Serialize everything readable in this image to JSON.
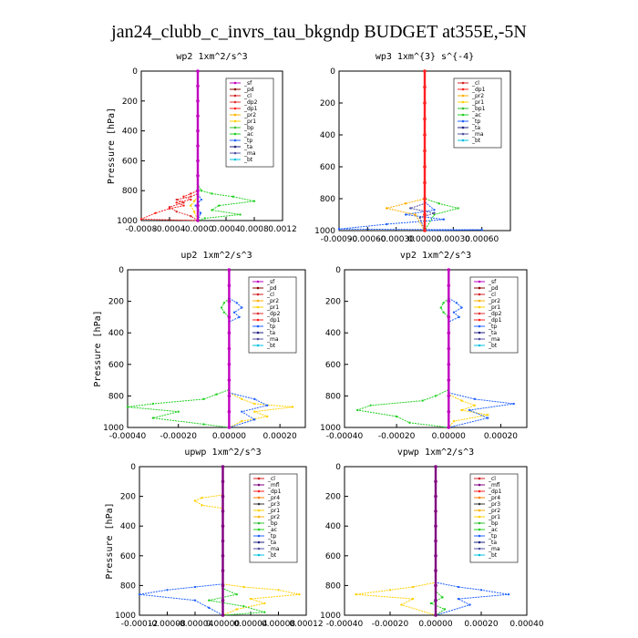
{
  "figure_title": "jan24_clubb_c_invrs_tau_bkgndp  BUDGET at355E,-5N",
  "colors": {
    "sf": "#c000c0",
    "pd": "#8b0000",
    "cl": "#d42020",
    "dp1": "#ff2020",
    "dp2": "#e03030",
    "pr1": "#ffd000",
    "pr2": "#ffb000",
    "pr4": "#ff8000",
    "bp": "#30c030",
    "ac": "#20d020",
    "tp": "#2060ff",
    "ta": "#202080",
    "ma": "#5050a0",
    "bt": "#00c0e0",
    "mfl": "#800080"
  },
  "chart_data": [
    {
      "type": "line",
      "title": "wp2  1xm^2/s^3",
      "ylabel": "Pressure [hPa]",
      "ylim": [
        1000,
        0
      ],
      "xlim": [
        -0.0008,
        0.0012
      ],
      "xticks": [
        "-0.0008",
        "-0.0004",
        "-0.0000",
        "0.0004",
        "0.0008",
        "0.0012"
      ],
      "yticks": [
        "0",
        "200",
        "400",
        "600",
        "800",
        "1000"
      ],
      "legend": [
        "_sf",
        "_pd",
        "_cl",
        "_dp2",
        "_dp1",
        "_pr2",
        "_pr1",
        "_bp",
        "_ac",
        "_tp",
        "_ta",
        "_ma",
        "_bt"
      ],
      "series": [
        {
          "name": "_ac",
          "color": "ac",
          "x": [
            0,
            0,
            5e-05,
            0.0002,
            0.0005,
            0.0008,
            0.0003,
            0.0002,
            0.0006,
            0.0001,
            0
          ],
          "y": [
            0,
            760,
            800,
            820,
            840,
            870,
            900,
            930,
            960,
            985,
            1000
          ]
        },
        {
          "name": "_dp1",
          "color": "dp1",
          "x": [
            0,
            0,
            -0.0001,
            -0.0002,
            -0.0001,
            -0.0003,
            -0.0002,
            -0.0004,
            -0.0006,
            -0.0008,
            0
          ],
          "y": [
            0,
            800,
            820,
            840,
            860,
            880,
            900,
            920,
            950,
            990,
            1000
          ]
        },
        {
          "name": "_dp2",
          "color": "dp2",
          "x": [
            0,
            0,
            -0.0001,
            -0.0003,
            -0.0002,
            -0.0004,
            -0.0003,
            -0.0001,
            0
          ],
          "y": [
            0,
            820,
            840,
            860,
            880,
            910,
            940,
            970,
            1000
          ]
        },
        {
          "name": "_pr1",
          "color": "pr1",
          "x": [
            0,
            0,
            -5e-05,
            -0.0001,
            -5e-05,
            0
          ],
          "y": [
            0,
            840,
            870,
            900,
            940,
            1000
          ]
        },
        {
          "name": "_tp",
          "color": "tp",
          "x": [
            0,
            0,
            5e-05,
            -3e-05,
            4e-05,
            0
          ],
          "y": [
            0,
            820,
            860,
            900,
            950,
            1000
          ]
        },
        {
          "name": "_sf",
          "color": "sf",
          "x": [
            0,
            0,
            0,
            0,
            0,
            0,
            0,
            0,
            0,
            0,
            0
          ],
          "y": [
            0,
            100,
            200,
            300,
            400,
            500,
            600,
            700,
            800,
            900,
            1000
          ]
        }
      ]
    },
    {
      "type": "line",
      "title": "wp3  1xm^{3} s^{-4}",
      "ylabel": "",
      "ylim": [
        1000,
        0
      ],
      "xlim": [
        -0.0009,
        0.0009
      ],
      "xticks": [
        "-0.00090",
        "-0.00060",
        "-0.00030",
        "0.00000",
        "0.00030",
        "0.00060"
      ],
      "yticks": [
        "0",
        "200",
        "400",
        "600",
        "800",
        "1000"
      ],
      "legend": [
        "_cl",
        "_dp1",
        "_pr2",
        "_pr1",
        "_bp1",
        "_ac",
        "_tp",
        "_ta",
        "_ma",
        "_bt"
      ],
      "series": [
        {
          "name": "_tp",
          "color": "tp",
          "x": [
            0,
            0,
            0.0001,
            -0.0002,
            0.0002,
            -0.0004,
            -0.0009,
            0.0006,
            0
          ],
          "y": [
            0,
            820,
            870,
            900,
            930,
            960,
            990,
            995,
            1000
          ]
        },
        {
          "name": "_ac",
          "color": "ac",
          "x": [
            0,
            0,
            0.00015,
            0.00035,
            0.0001,
            0
          ],
          "y": [
            0,
            800,
            830,
            860,
            900,
            1000
          ]
        },
        {
          "name": "_pr2",
          "color": "pr2",
          "x": [
            0,
            0,
            -0.0002,
            -0.0004,
            -0.0001,
            0
          ],
          "y": [
            0,
            800,
            830,
            860,
            900,
            1000
          ]
        },
        {
          "name": "_ma",
          "color": "ma",
          "x": [
            0,
            0,
            -0.00015,
            0.0001,
            -5e-05,
            0
          ],
          "y": [
            0,
            830,
            860,
            890,
            920,
            1000
          ]
        },
        {
          "name": "_dp1",
          "color": "dp1",
          "x": [
            0,
            0,
            0,
            0,
            0,
            0,
            0,
            0,
            0,
            0,
            0
          ],
          "y": [
            0,
            100,
            200,
            300,
            400,
            500,
            600,
            700,
            800,
            900,
            1000
          ]
        }
      ]
    },
    {
      "type": "line",
      "title": "up2  1xm^2/s^3",
      "ylabel": "Pressure [hPa]",
      "ylim": [
        1000,
        0
      ],
      "xlim": [
        -0.0004,
        0.0003
      ],
      "xticks": [
        "-0.00040",
        "-0.00020",
        "0.00000",
        "0.00020"
      ],
      "yticks": [
        "0",
        "200",
        "400",
        "600",
        "800",
        "1000"
      ],
      "legend": [
        "_sf",
        "_pd",
        "_cl",
        "_pr2",
        "_pr1",
        "_dp2",
        "_dp1",
        "_tp",
        "_ta",
        "_ma",
        "_bt"
      ],
      "series": [
        {
          "name": "_dp1",
          "color": "ac",
          "x": [
            0,
            0,
            -5e-05,
            -0.0001,
            -0.0003,
            -0.0004,
            -0.0002,
            -0.0003,
            -0.0001,
            0
          ],
          "y": [
            0,
            760,
            790,
            820,
            850,
            870,
            900,
            940,
            980,
            1000
          ]
        },
        {
          "name": "_pr1",
          "color": "pr1",
          "x": [
            0,
            0,
            5e-05,
            0.0001,
            0.00025,
            0.0001,
            0.00015,
            5e-05,
            0
          ],
          "y": [
            0,
            780,
            820,
            850,
            870,
            900,
            930,
            960,
            1000
          ]
        },
        {
          "name": "_tp",
          "color": "tp",
          "x": [
            0,
            0,
            0.0001,
            0.00015,
            5e-05,
            0.0001,
            0
          ],
          "y": [
            0,
            780,
            820,
            860,
            900,
            950,
            1000
          ]
        },
        {
          "name": "_tp_up",
          "color": "tp",
          "x": [
            0,
            3e-05,
            5e-05,
            2e-05,
            4e-05,
            0
          ],
          "y": [
            180,
            210,
            240,
            270,
            300,
            330
          ]
        },
        {
          "name": "_pr2_up",
          "color": "ac",
          "x": [
            0,
            -2e-05,
            -3e-05,
            -2e-05,
            0
          ],
          "y": [
            180,
            210,
            240,
            270,
            300
          ]
        },
        {
          "name": "_sf",
          "color": "sf",
          "x": [
            0,
            0,
            0,
            0,
            0,
            0,
            0,
            0,
            0,
            0,
            0
          ],
          "y": [
            0,
            100,
            200,
            300,
            400,
            500,
            600,
            700,
            800,
            900,
            1000
          ]
        }
      ]
    },
    {
      "type": "line",
      "title": "vp2  1xm^2/s^3",
      "ylabel": "",
      "ylim": [
        1000,
        0
      ],
      "xlim": [
        -0.0004,
        0.0003
      ],
      "xticks": [
        "-0.00040",
        "-0.00020",
        "0.00000",
        "0.00020"
      ],
      "yticks": [
        "0",
        "200",
        "400",
        "600",
        "800",
        "1000"
      ],
      "legend": [
        "_sf",
        "_pd",
        "_cl",
        "_pr2",
        "_pr1",
        "_dp2",
        "_dp1",
        "_tp",
        "_ta",
        "_ma",
        "_bt"
      ],
      "series": [
        {
          "name": "_dp1",
          "color": "ac",
          "x": [
            0,
            0,
            -5e-05,
            -0.0001,
            -0.0003,
            -0.00035,
            -0.0002,
            -0.00015,
            0
          ],
          "y": [
            0,
            760,
            800,
            830,
            860,
            890,
            930,
            970,
            1000
          ]
        },
        {
          "name": "_pr1",
          "color": "pr1",
          "x": [
            0,
            0,
            5e-05,
            0.0001,
            5e-05,
            0.00015,
            2e-05,
            0
          ],
          "y": [
            0,
            790,
            830,
            860,
            890,
            920,
            960,
            1000
          ]
        },
        {
          "name": "_tp",
          "color": "tp",
          "x": [
            0,
            0,
            0.0001,
            0.00025,
            8e-05,
            0.00015,
            0
          ],
          "y": [
            0,
            780,
            820,
            850,
            890,
            940,
            1000
          ]
        },
        {
          "name": "_tp_up",
          "color": "tp",
          "x": [
            0,
            3e-05,
            5e-05,
            2e-05,
            4e-05,
            0
          ],
          "y": [
            180,
            210,
            240,
            270,
            300,
            330
          ]
        },
        {
          "name": "_pr2_up",
          "color": "ac",
          "x": [
            0,
            -2e-05,
            -3e-05,
            -2e-05,
            0
          ],
          "y": [
            180,
            210,
            240,
            270,
            300
          ]
        },
        {
          "name": "_sf",
          "color": "sf",
          "x": [
            0,
            0,
            0,
            0,
            0,
            0,
            0,
            0,
            0,
            0,
            0
          ],
          "y": [
            0,
            100,
            200,
            300,
            400,
            500,
            600,
            700,
            800,
            900,
            1000
          ]
        }
      ]
    },
    {
      "type": "line",
      "title": "upwp  1xm^2/s^3",
      "ylabel": "Pressure [hPa]",
      "ylim": [
        1000,
        0
      ],
      "xlim": [
        -0.00012,
        0.00012
      ],
      "xticks": [
        "-0.00012",
        "-0.00008",
        "-0.00004",
        "0.00000",
        "0.00004",
        "0.00008",
        "0.00012"
      ],
      "yticks": [
        "0",
        "200",
        "400",
        "600",
        "800",
        "1000"
      ],
      "legend": [
        "_cl",
        "_mfl",
        "_dp1",
        "_pr4",
        "_pr3",
        "_pr1",
        "_pr2",
        "_bp",
        "_ac",
        "_tp",
        "_ta",
        "_ma",
        "_bt"
      ],
      "series": [
        {
          "name": "_tp",
          "color": "tp",
          "x": [
            0,
            0,
            -4e-05,
            -8e-05,
            -0.00012,
            -4e-05,
            -2e-05,
            0
          ],
          "y": [
            0,
            790,
            810,
            830,
            860,
            900,
            950,
            1000
          ]
        },
        {
          "name": "_pr1",
          "color": "pr1",
          "x": [
            0,
            0,
            3e-05,
            8e-05,
            0.00011,
            4e-05,
            6e-05,
            2e-05,
            0
          ],
          "y": [
            0,
            790,
            810,
            830,
            860,
            890,
            920,
            960,
            1000
          ]
        },
        {
          "name": "_ac",
          "color": "ac",
          "x": [
            0,
            0,
            2e-05,
            -2e-05,
            3e-05,
            6e-05,
            0
          ],
          "y": [
            0,
            820,
            860,
            900,
            940,
            980,
            1000
          ]
        },
        {
          "name": "_pr1_up",
          "color": "pr1",
          "x": [
            0,
            -3e-05,
            -4e-05,
            -3e-05,
            0
          ],
          "y": [
            190,
            210,
            230,
            260,
            280
          ]
        },
        {
          "name": "_cl",
          "color": "mfl",
          "x": [
            0,
            0,
            0,
            0,
            0,
            0,
            0,
            0,
            0,
            0,
            0
          ],
          "y": [
            0,
            100,
            200,
            300,
            400,
            500,
            600,
            700,
            800,
            900,
            1000
          ]
        }
      ]
    },
    {
      "type": "line",
      "title": "vpwp  1xm^2/s^3",
      "ylabel": "",
      "ylim": [
        1000,
        0
      ],
      "xlim": [
        -0.0004,
        0.0004
      ],
      "xticks": [
        "-0.00040",
        "-0.00020",
        "0.00000",
        "0.00020",
        "0.00040"
      ],
      "yticks": [
        "0",
        "200",
        "400",
        "600",
        "800",
        "1000"
      ],
      "legend": [
        "_cl",
        "_mfl",
        "_dp1",
        "_pr4",
        "_pr3",
        "_pr2",
        "_pr1",
        "_bp",
        "_ac",
        "_tp",
        "_ta",
        "_ma",
        "_bt"
      ],
      "series": [
        {
          "name": "_tp",
          "color": "tp",
          "x": [
            0,
            0,
            0.0001,
            0.0002,
            0.00032,
            0.0001,
            0.00015,
            0
          ],
          "y": [
            0,
            780,
            810,
            830,
            860,
            890,
            930,
            1000
          ]
        },
        {
          "name": "_pr1",
          "color": "pr1",
          "x": [
            0,
            0,
            -0.0001,
            -0.0002,
            -0.00035,
            -0.0001,
            -0.00015,
            0
          ],
          "y": [
            0,
            780,
            810,
            830,
            860,
            890,
            930,
            1000
          ]
        },
        {
          "name": "_ac",
          "color": "ac",
          "x": [
            0,
            0,
            3e-05,
            -2e-05,
            4e-05,
            0
          ],
          "y": [
            0,
            840,
            880,
            920,
            960,
            1000
          ]
        },
        {
          "name": "_cl",
          "color": "mfl",
          "x": [
            0,
            0,
            0,
            0,
            0,
            0,
            0,
            0,
            0,
            0,
            0
          ],
          "y": [
            0,
            100,
            200,
            300,
            400,
            500,
            600,
            700,
            800,
            900,
            1000
          ]
        }
      ]
    }
  ]
}
